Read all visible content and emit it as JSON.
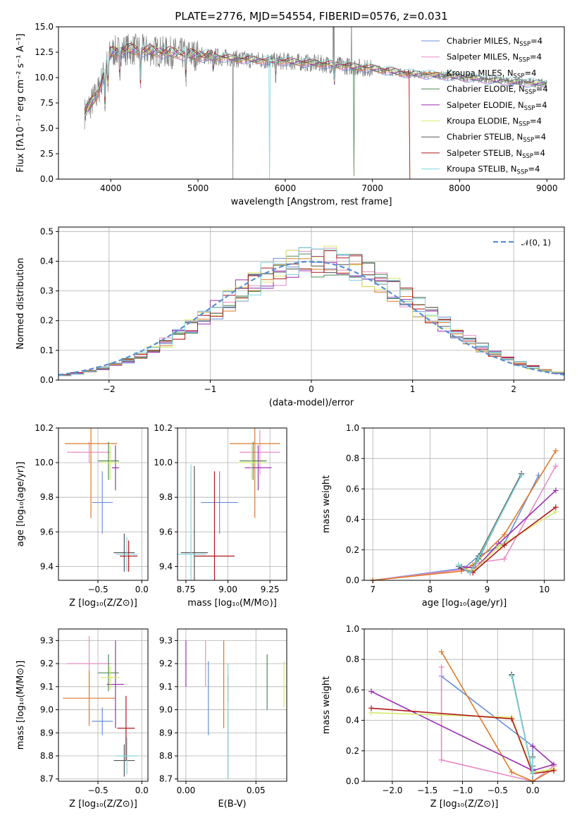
{
  "colors": [
    "#6a8fd8",
    "#e88cc4",
    "#e07a2a",
    "#4e8a55",
    "#9a2fb0",
    "#d6ea6c",
    "#555555",
    "#b01818",
    "#7fd6de"
  ],
  "chart_data": [
    {
      "id": "spectrum",
      "type": "line",
      "title": "PLATE=2776, MJD=54554, FIBERID=0576, z=0.031",
      "xlabel": "wavelength [Angstrom, rest frame]",
      "ylabel": "Flux [fλ10⁻¹⁷ erg cm⁻² s⁻¹ A⁻¹]",
      "xlim": [
        3400,
        9200
      ],
      "ylim": [
        0,
        15
      ],
      "xticks": [
        "4000",
        "5000",
        "6000",
        "7000",
        "8000",
        "9000"
      ],
      "yticks": [
        "0.0",
        "2.5",
        "5.0",
        "7.5",
        "10.0",
        "12.5",
        "15.0"
      ],
      "legend_position": "top-right",
      "series_labels": [
        "Chabrier MILES, N_SSP=4",
        "Salpeter MILES, N_SSP=4",
        "Kroupa MILES, N_SSP=4",
        "Chabrier ELODIE, N_SSP=4",
        "Salpeter ELODIE, N_SSP=4",
        "Kroupa ELODIE, N_SSP=4",
        "Chabrier STELIB, N_SSP=4",
        "Salpeter STELIB, N_SSP=4",
        "Kroupa STELIB, N_SSP=4"
      ],
      "approx_continuum": {
        "x": [
          3700,
          3850,
          4000,
          4200,
          4500,
          5000,
          5500,
          6000,
          6500,
          7000,
          7400,
          7800,
          8200,
          8600,
          9000
        ],
        "y": [
          6.5,
          8.5,
          12.5,
          12.8,
          12.6,
          12.2,
          11.8,
          11.6,
          11.3,
          10.9,
          10.4,
          10.2,
          9.9,
          9.6,
          9.4
        ]
      }
    },
    {
      "id": "residuals",
      "type": "histogram",
      "xlabel": "(data-model)/error",
      "ylabel": "Normed distribution",
      "xlim": [
        -2.5,
        2.5
      ],
      "ylim": [
        0,
        0.515
      ],
      "xticks": [
        "−2",
        "−1",
        "0",
        "1",
        "2"
      ],
      "yticks": [
        "0.0",
        "0.1",
        "0.2",
        "0.3",
        "0.4",
        "0.5"
      ],
      "legend": "𝒩(0, 1)",
      "legend_position": "top-right",
      "gaussian": {
        "mu": 0,
        "sigma": 1
      }
    },
    {
      "id": "age-vs-Z",
      "type": "errorbar",
      "xlabel": "Z [log₁₀(Z/Z⊙)]",
      "ylabel": "age  [log₁₀(age/yr)]",
      "xlim": [
        -0.95,
        0.07
      ],
      "ylim": [
        9.32,
        10.2
      ],
      "xticks": [
        "−0.5",
        "0.0"
      ],
      "yticks": [
        "9.4",
        "9.6",
        "9.8",
        "10.0",
        "10.2"
      ],
      "points": [
        {
          "x": -0.45,
          "y": 9.77,
          "xerr": 0.12,
          "yerr": 0.18
        },
        {
          "x": -0.6,
          "y": 10.06,
          "xerr": 0.25,
          "yerr": 0.06
        },
        {
          "x": -0.58,
          "y": 10.11,
          "xerr": 0.3,
          "yerr": 0.43
        },
        {
          "x": -0.38,
          "y": 10.01,
          "xerr": 0.12,
          "yerr": 0.11
        },
        {
          "x": -0.3,
          "y": 9.97,
          "xerr": 0.04,
          "yerr": 0.13
        },
        {
          "x": -0.36,
          "y": 10.0,
          "xerr": 0.11,
          "yerr": 0.1
        },
        {
          "x": -0.2,
          "y": 9.48,
          "xerr": 0.12,
          "yerr": 0.11
        },
        {
          "x": -0.15,
          "y": 9.46,
          "xerr": 0.1,
          "yerr": 0.09
        },
        {
          "x": -0.17,
          "y": 9.47,
          "xerr": 0.12,
          "yerr": 0.1
        }
      ]
    },
    {
      "id": "age-vs-mass",
      "type": "errorbar",
      "xlabel": "mass [log₁₀(M/M⊙)]",
      "ylabel": "",
      "xlim": [
        8.7,
        9.35
      ],
      "ylim": [
        9.32,
        10.2
      ],
      "xticks": [
        "8.75",
        "9.00",
        "9.25"
      ],
      "yticks": [
        "9.4",
        "9.6",
        "9.8",
        "10.0",
        "10.2"
      ],
      "points": [
        {
          "x": 8.95,
          "y": 9.77,
          "xerr": 0.11,
          "yerr": 0.18
        },
        {
          "x": 9.19,
          "y": 10.06,
          "xerr": 0.12,
          "yerr": 0.13
        },
        {
          "x": 9.16,
          "y": 10.11,
          "xerr": 0.15,
          "yerr": 0.43
        },
        {
          "x": 9.15,
          "y": 10.01,
          "xerr": 0.08,
          "yerr": 0.11
        },
        {
          "x": 9.18,
          "y": 9.97,
          "xerr": 0.08,
          "yerr": 0.13
        },
        {
          "x": 9.14,
          "y": 10.0,
          "xerr": 0.08,
          "yerr": 0.1
        },
        {
          "x": 8.8,
          "y": 9.48,
          "xerr": 0.08,
          "yerr": 0.5
        },
        {
          "x": 8.92,
          "y": 9.46,
          "xerr": 0.12,
          "yerr": 0.49
        },
        {
          "x": 8.78,
          "y": 9.47,
          "xerr": 0.09,
          "yerr": 0.52
        }
      ]
    },
    {
      "id": "massweight-vs-age",
      "type": "line",
      "xlabel": "age  [log₁₀(age/yr)]",
      "ylabel": "mass weight",
      "xlim": [
        6.85,
        10.35
      ],
      "ylim": [
        0,
        1
      ],
      "xticks": [
        "7",
        "8",
        "9",
        "10"
      ],
      "yticks": [
        "0.0",
        "0.2",
        "0.4",
        "0.6",
        "0.8",
        "1.0"
      ],
      "series": [
        {
          "x": [
            7.0,
            8.6,
            8.85,
            9.3,
            9.9
          ],
          "y": [
            0.0,
            0.08,
            0.16,
            0.24,
            0.69
          ]
        },
        {
          "x": [
            7.0,
            8.55,
            8.9,
            9.3,
            10.2
          ],
          "y": [
            0.0,
            0.07,
            0.12,
            0.14,
            0.75
          ]
        },
        {
          "x": [
            7.0,
            8.55,
            8.75,
            9.3,
            10.2
          ],
          "y": [
            0.0,
            0.06,
            0.1,
            0.3,
            0.85
          ]
        },
        {
          "x": [
            8.5,
            8.7,
            8.85,
            9.6
          ],
          "y": [
            0.1,
            0.05,
            0.14,
            0.7
          ]
        },
        {
          "x": [
            8.55,
            8.8,
            9.2,
            10.2
          ],
          "y": [
            0.09,
            0.08,
            0.24,
            0.59
          ]
        },
        {
          "x": [
            8.55,
            8.75,
            9.2,
            10.2
          ],
          "y": [
            0.08,
            0.06,
            0.22,
            0.45
          ]
        },
        {
          "x": [
            8.5,
            8.7,
            8.85,
            9.6
          ],
          "y": [
            0.09,
            0.05,
            0.16,
            0.7
          ]
        },
        {
          "x": [
            8.55,
            8.75,
            9.3,
            10.2
          ],
          "y": [
            0.08,
            0.05,
            0.23,
            0.48
          ]
        },
        {
          "x": [
            8.5,
            8.7,
            8.85,
            9.6
          ],
          "y": [
            0.1,
            0.05,
            0.15,
            0.69
          ]
        }
      ]
    },
    {
      "id": "mass-vs-Z",
      "type": "errorbar",
      "xlabel": "Z [log₁₀(Z/Z⊙)]",
      "ylabel": "mass [log₁₀(M/M⊙)]",
      "xlim": [
        -0.95,
        0.07
      ],
      "ylim": [
        8.69,
        9.35
      ],
      "xticks": [
        "−0.5",
        "0.0"
      ],
      "yticks": [
        "8.7",
        "8.8",
        "8.9",
        "9.0",
        "9.1",
        "9.2",
        "9.3"
      ],
      "points": [
        {
          "x": -0.45,
          "y": 8.95,
          "xerr": 0.12,
          "yerr": 0.06
        },
        {
          "x": -0.6,
          "y": 9.2,
          "xerr": 0.25,
          "yerr": 0.12
        },
        {
          "x": -0.6,
          "y": 9.05,
          "xerr": 0.3,
          "yerr": 0.12
        },
        {
          "x": -0.38,
          "y": 9.16,
          "xerr": 0.12,
          "yerr": 0.08
        },
        {
          "x": -0.3,
          "y": 9.11,
          "xerr": 0.1,
          "yerr": 0.19
        },
        {
          "x": -0.36,
          "y": 9.14,
          "xerr": 0.11,
          "yerr": 0.05
        },
        {
          "x": -0.2,
          "y": 8.78,
          "xerr": 0.12,
          "yerr": 0.07
        },
        {
          "x": -0.18,
          "y": 8.92,
          "xerr": 0.1,
          "yerr": 0.14
        },
        {
          "x": -0.17,
          "y": 8.8,
          "xerr": 0.12,
          "yerr": 0.08
        }
      ]
    },
    {
      "id": "mass-vs-EBV",
      "type": "errorbar",
      "xlabel": "E(B-V)",
      "ylabel": "",
      "xlim": [
        -0.006,
        0.072
      ],
      "ylim": [
        8.69,
        9.35
      ],
      "xticks": [
        "0.00",
        "0.05"
      ],
      "yticks": [
        "8.7",
        "8.8",
        "8.9",
        "9.0",
        "9.1",
        "9.2",
        "9.3"
      ],
      "points": [
        {
          "x": 0.016,
          "y": 9.05,
          "xerr": 0,
          "yerr": 0.16
        },
        {
          "x": 0.014,
          "y": 9.2,
          "xerr": 0,
          "yerr": 0.1
        },
        {
          "x": 0.027,
          "y": 9.11,
          "xerr": 0,
          "yerr": 0.19
        },
        {
          "x": 0.058,
          "y": 9.12,
          "xerr": 0,
          "yerr": 0.12
        },
        {
          "x": 0.0,
          "y": 9.2,
          "xerr": 0,
          "yerr": 0.1
        },
        {
          "x": 0.07,
          "y": 9.11,
          "xerr": 0,
          "yerr": 0.1
        },
        {
          "x": 0.03,
          "y": 8.85,
          "xerr": 0,
          "yerr": 0.15
        },
        {
          "x": 0.03,
          "y": 9.09,
          "xerr": 0,
          "yerr": 0.06
        },
        {
          "x": 0.03,
          "y": 8.95,
          "xerr": 0,
          "yerr": 0.25
        }
      ]
    },
    {
      "id": "massweight-vs-Z",
      "type": "line",
      "xlabel": "Z [log₁₀(Z/Z⊙)]",
      "ylabel": "mass weight",
      "xlim": [
        -2.4,
        0.45
      ],
      "ylim": [
        0,
        1
      ],
      "xticks": [
        "−2.0",
        "−1.5",
        "−1.0",
        "−0.5",
        "0.0"
      ],
      "yticks": [
        "0.0",
        "0.2",
        "0.4",
        "0.6",
        "0.8",
        "1.0"
      ],
      "series": [
        {
          "x": [
            -1.3,
            0.0,
            0.0,
            0.0
          ],
          "y": [
            0.69,
            0.23,
            0.08,
            0.0
          ]
        },
        {
          "x": [
            -1.3,
            -1.3,
            0.0,
            0.3
          ],
          "y": [
            0.75,
            0.14,
            0.0,
            0.1
          ]
        },
        {
          "x": [
            -1.3,
            -0.3,
            0.0,
            0.3
          ],
          "y": [
            0.85,
            0.06,
            0.0,
            0.08
          ]
        },
        {
          "x": [
            -0.3,
            -0.3,
            0.0,
            0.0
          ],
          "y": [
            0.7,
            0.7,
            0.05,
            0.1
          ]
        },
        {
          "x": [
            -2.3,
            0.0,
            0.3,
            0.0
          ],
          "y": [
            0.59,
            0.07,
            0.11,
            0.23
          ]
        },
        {
          "x": [
            -2.3,
            -0.3,
            0.0,
            0.3
          ],
          "y": [
            0.45,
            0.42,
            0.06,
            0.08
          ]
        },
        {
          "x": [
            -0.3,
            -0.3,
            0.0,
            0.0
          ],
          "y": [
            0.7,
            0.7,
            0.05,
            0.16
          ]
        },
        {
          "x": [
            -2.3,
            -0.3,
            0.0,
            0.3
          ],
          "y": [
            0.48,
            0.41,
            0.05,
            0.07
          ]
        },
        {
          "x": [
            -0.3,
            -0.3,
            0.0,
            0.0
          ],
          "y": [
            0.69,
            0.69,
            0.05,
            0.15
          ]
        }
      ]
    }
  ]
}
